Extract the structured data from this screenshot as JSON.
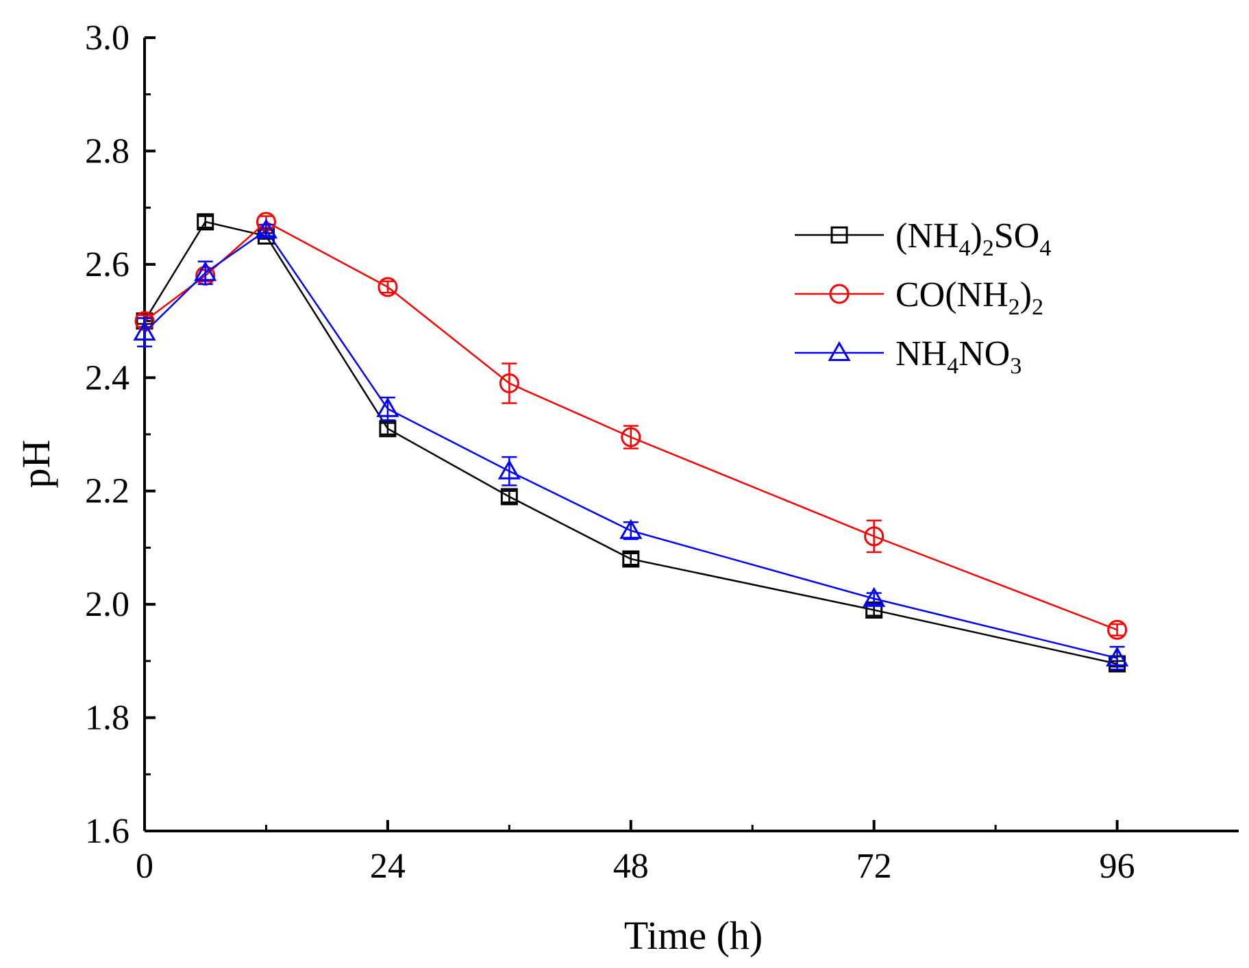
{
  "chart_data": {
    "type": "line",
    "title": "",
    "xlabel": "Time (h)",
    "ylabel": "pH",
    "xlim": [
      0,
      108
    ],
    "ylim": [
      1.6,
      3.0
    ],
    "xticks": [
      0,
      24,
      48,
      72,
      96
    ],
    "xtick_labels": [
      "0",
      "24",
      "48",
      "72",
      "96"
    ],
    "yticks": [
      1.6,
      1.8,
      2.0,
      2.2,
      2.4,
      2.6,
      2.8,
      3.0
    ],
    "ytick_labels": [
      "1.6",
      "1.8",
      "2.0",
      "2.2",
      "2.4",
      "2.6",
      "2.8",
      "3.0"
    ],
    "legend_position": "top-right",
    "series": [
      {
        "name": "(NH4)2SO4",
        "legend_parts": [
          {
            "t": "(NH",
            "sub": false
          },
          {
            "t": "4",
            "sub": true
          },
          {
            "t": ")",
            "sub": false
          },
          {
            "t": "2",
            "sub": true
          },
          {
            "t": "SO",
            "sub": false
          },
          {
            "t": "4",
            "sub": true
          }
        ],
        "marker": "square",
        "color": "#000000",
        "x": [
          0,
          6,
          12,
          24,
          36,
          48,
          72,
          96
        ],
        "y": [
          2.5,
          2.675,
          2.65,
          2.31,
          2.19,
          2.08,
          1.99,
          1.895
        ],
        "err": [
          0.005,
          0.01,
          0.005,
          0.01,
          0.01,
          0.01,
          0.01,
          0.005
        ]
      },
      {
        "name": "CO(NH2)2",
        "legend_parts": [
          {
            "t": "CO(NH",
            "sub": false
          },
          {
            "t": "2",
            "sub": true
          },
          {
            "t": ")",
            "sub": false
          },
          {
            "t": "2",
            "sub": true
          }
        ],
        "marker": "circle",
        "color": "#ff0000",
        "x": [
          0,
          6,
          12,
          24,
          36,
          48,
          72,
          96
        ],
        "y": [
          2.5,
          2.58,
          2.675,
          2.56,
          2.39,
          2.295,
          2.12,
          1.955
        ],
        "err": [
          0.01,
          0.01,
          0.01,
          0.01,
          0.035,
          0.02,
          0.028,
          0.01
        ]
      },
      {
        "name": "NH4NO3",
        "legend_parts": [
          {
            "t": "NH",
            "sub": false
          },
          {
            "t": "4",
            "sub": true
          },
          {
            "t": "NO",
            "sub": false
          },
          {
            "t": "3",
            "sub": true
          }
        ],
        "marker": "triangle",
        "color": "#0000ff",
        "x": [
          0,
          6,
          12,
          24,
          36,
          48,
          72,
          96
        ],
        "y": [
          2.48,
          2.585,
          2.66,
          2.345,
          2.235,
          2.13,
          2.01,
          1.905
        ],
        "err": [
          0.025,
          0.02,
          0.01,
          0.02,
          0.025,
          0.015,
          0.01,
          0.02
        ]
      }
    ]
  }
}
